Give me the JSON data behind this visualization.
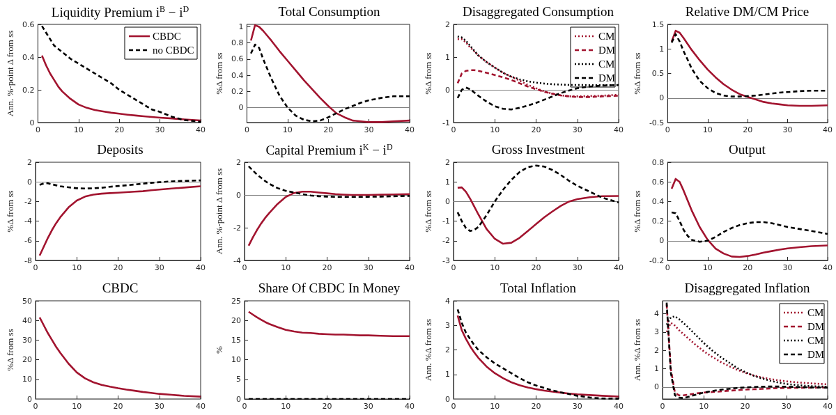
{
  "chart_data": [
    {
      "type": "line",
      "title": "Liquidity Premium i$^{B}$ − i$^{D}$",
      "ylabel": "Ann. %-point Δ from ss",
      "x": [
        1,
        2,
        3,
        4,
        5,
        6,
        8,
        10,
        12,
        14,
        16,
        18,
        20,
        22,
        24,
        26,
        28,
        30,
        33,
        36,
        40
      ],
      "xlim": [
        0,
        40
      ],
      "xticks": [
        0,
        10,
        20,
        30,
        40
      ],
      "ylim": [
        0,
        0.6
      ],
      "yticks": [
        0,
        0.2,
        0.4,
        0.6
      ],
      "legend": "top right",
      "series": [
        {
          "name": "CBDC",
          "color": "#a2142f",
          "line_style": "solid",
          "values": [
            0.41,
            0.35,
            0.3,
            0.26,
            0.22,
            0.19,
            0.145,
            0.11,
            0.09,
            0.077,
            0.068,
            0.06,
            0.054,
            0.048,
            0.043,
            0.038,
            0.034,
            0.03,
            0.025,
            0.019,
            0.013
          ]
        },
        {
          "name": "no CBDC",
          "color": "#000000",
          "line_style": "dashed",
          "values": [
            0.59,
            0.55,
            0.51,
            0.47,
            0.45,
            0.43,
            0.39,
            0.36,
            0.33,
            0.3,
            0.27,
            0.24,
            0.2,
            0.17,
            0.14,
            0.11,
            0.08,
            0.065,
            0.035,
            0.015,
            0.005
          ]
        }
      ]
    },
    {
      "type": "line",
      "title": "Total Consumption",
      "ylabel": "%Δ from ss",
      "x": [
        1,
        2,
        3,
        4,
        5,
        6,
        8,
        10,
        12,
        14,
        16,
        18,
        20,
        22,
        24,
        26,
        28,
        30,
        33,
        36,
        40
      ],
      "xlim": [
        0,
        40
      ],
      "xticks": [
        0,
        10,
        20,
        30,
        40
      ],
      "ylim": [
        -0.185,
        1.03
      ],
      "yticks": [
        0,
        0.2,
        0.4,
        0.6,
        0.8,
        1
      ],
      "ref_lines": [
        {
          "axis": "y",
          "value": 0,
          "color": "#808080"
        }
      ],
      "series": [
        {
          "color": "#a2142f",
          "line_style": "solid",
          "values": [
            0.83,
            1.02,
            1.0,
            0.95,
            0.89,
            0.83,
            0.7,
            0.58,
            0.46,
            0.34,
            0.23,
            0.12,
            0.02,
            -0.07,
            -0.12,
            -0.16,
            -0.17,
            -0.18,
            -0.18,
            -0.17,
            -0.16
          ]
        },
        {
          "color": "#000000",
          "line_style": "dashed",
          "values": [
            0.67,
            0.78,
            0.74,
            0.6,
            0.48,
            0.36,
            0.15,
            0.0,
            -0.1,
            -0.15,
            -0.17,
            -0.16,
            -0.12,
            -0.07,
            -0.02,
            0.02,
            0.06,
            0.09,
            0.12,
            0.14,
            0.14
          ]
        }
      ]
    },
    {
      "type": "line",
      "title": "Disaggregated Consumption",
      "ylabel": "%Δ from ss",
      "x": [
        1,
        2,
        3,
        4,
        5,
        6,
        8,
        10,
        12,
        14,
        16,
        18,
        20,
        22,
        24,
        26,
        28,
        30,
        33,
        36,
        40
      ],
      "xlim": [
        0,
        40
      ],
      "xticks": [
        0,
        10,
        20,
        30,
        40
      ],
      "ylim": [
        -1,
        2
      ],
      "yticks": [
        -1,
        0,
        1,
        2
      ],
      "legend": "top right",
      "ref_lines": [
        {
          "axis": "y",
          "value": 0,
          "color": "#808080"
        }
      ],
      "series": [
        {
          "name": "CM",
          "color": "#a2142f",
          "line_style": "dotted",
          "values": [
            1.55,
            1.55,
            1.45,
            1.3,
            1.18,
            1.05,
            0.85,
            0.68,
            0.52,
            0.4,
            0.28,
            0.15,
            0.05,
            -0.05,
            -0.12,
            -0.17,
            -0.2,
            -0.2,
            -0.19,
            -0.18,
            -0.15
          ]
        },
        {
          "name": "DM",
          "color": "#a2142f",
          "line_style": "dashed",
          "values": [
            0.2,
            0.5,
            0.58,
            0.6,
            0.6,
            0.58,
            0.52,
            0.45,
            0.38,
            0.3,
            0.2,
            0.1,
            0.02,
            -0.06,
            -0.12,
            -0.17,
            -0.2,
            -0.22,
            -0.22,
            -0.2,
            -0.18
          ]
        },
        {
          "name": "CM",
          "color": "#000000",
          "line_style": "dotted",
          "values": [
            1.63,
            1.6,
            1.5,
            1.35,
            1.2,
            1.05,
            0.85,
            0.68,
            0.52,
            0.4,
            0.32,
            0.26,
            0.22,
            0.19,
            0.17,
            0.16,
            0.15,
            0.15,
            0.14,
            0.14,
            0.14
          ]
        },
        {
          "name": "DM",
          "color": "#000000",
          "line_style": "dashed",
          "values": [
            -0.25,
            0.0,
            0.07,
            0.02,
            -0.08,
            -0.18,
            -0.36,
            -0.5,
            -0.58,
            -0.6,
            -0.55,
            -0.48,
            -0.4,
            -0.3,
            -0.2,
            -0.1,
            -0.02,
            0.05,
            0.1,
            0.13,
            0.15
          ]
        }
      ]
    },
    {
      "type": "line",
      "title": "Relative DM/CM Price",
      "ylabel": "%Δ from ss",
      "x": [
        1,
        2,
        3,
        4,
        5,
        6,
        8,
        10,
        12,
        14,
        16,
        18,
        20,
        22,
        24,
        26,
        28,
        30,
        33,
        36,
        40
      ],
      "xlim": [
        0,
        40
      ],
      "xticks": [
        0,
        10,
        20,
        30,
        40
      ],
      "ylim": [
        -0.5,
        1.5
      ],
      "yticks": [
        -0.5,
        0,
        0.5,
        1,
        1.5
      ],
      "ref_lines": [
        {
          "axis": "y",
          "value": 0,
          "color": "#808080"
        }
      ],
      "series": [
        {
          "color": "#a2142f",
          "line_style": "solid",
          "values": [
            1.15,
            1.37,
            1.33,
            1.22,
            1.1,
            0.98,
            0.77,
            0.58,
            0.42,
            0.28,
            0.17,
            0.08,
            0.02,
            -0.03,
            -0.08,
            -0.11,
            -0.13,
            -0.15,
            -0.16,
            -0.16,
            -0.15
          ]
        },
        {
          "color": "#000000",
          "line_style": "dashed",
          "values": [
            1.13,
            1.3,
            1.15,
            0.95,
            0.78,
            0.6,
            0.35,
            0.2,
            0.1,
            0.05,
            0.03,
            0.03,
            0.04,
            0.05,
            0.07,
            0.09,
            0.11,
            0.12,
            0.14,
            0.15,
            0.15
          ]
        }
      ]
    },
    {
      "type": "line",
      "title": "Deposits",
      "ylabel": "%Δ from ss",
      "x": [
        1,
        2,
        3,
        4,
        5,
        6,
        8,
        10,
        12,
        14,
        16,
        18,
        20,
        22,
        24,
        26,
        28,
        30,
        33,
        36,
        40
      ],
      "xlim": [
        0,
        40
      ],
      "xticks": [
        0,
        10,
        20,
        30,
        40
      ],
      "ylim": [
        -8,
        2
      ],
      "yticks": [
        -8,
        -6,
        -4,
        -2,
        0,
        2
      ],
      "ref_lines": [
        {
          "axis": "y",
          "value": 0,
          "color": "#808080"
        }
      ],
      "series": [
        {
          "color": "#a2142f",
          "line_style": "solid",
          "values": [
            -7.5,
            -6.6,
            -5.7,
            -4.9,
            -4.2,
            -3.6,
            -2.6,
            -1.9,
            -1.5,
            -1.3,
            -1.2,
            -1.15,
            -1.1,
            -1.05,
            -1.0,
            -0.95,
            -0.85,
            -0.78,
            -0.68,
            -0.58,
            -0.45
          ]
        },
        {
          "color": "#000000",
          "line_style": "dashed",
          "values": [
            -0.3,
            -0.15,
            -0.15,
            -0.25,
            -0.35,
            -0.45,
            -0.55,
            -0.65,
            -0.68,
            -0.65,
            -0.6,
            -0.5,
            -0.42,
            -0.35,
            -0.27,
            -0.18,
            -0.1,
            -0.03,
            0.05,
            0.1,
            0.15
          ]
        }
      ]
    },
    {
      "type": "line",
      "title": "Capital Premium i$^{K}$ − i$^{D}$",
      "ylabel": "Ann. %-point Δ from ss",
      "x": [
        1,
        2,
        3,
        4,
        5,
        6,
        8,
        10,
        12,
        14,
        16,
        18,
        20,
        22,
        24,
        26,
        28,
        30,
        33,
        36,
        40
      ],
      "xlim": [
        0,
        40
      ],
      "xticks": [
        0,
        10,
        20,
        30,
        40
      ],
      "ylim": [
        -4,
        2
      ],
      "yticks": [
        -4,
        -2,
        0,
        2
      ],
      "ref_lines": [
        {
          "axis": "y",
          "value": 0,
          "color": "#808080"
        }
      ],
      "series": [
        {
          "color": "#a2142f",
          "line_style": "solid",
          "values": [
            -3.1,
            -2.6,
            -2.15,
            -1.75,
            -1.4,
            -1.1,
            -0.55,
            -0.12,
            0.12,
            0.2,
            0.2,
            0.15,
            0.1,
            0.05,
            0.02,
            0.0,
            0.0,
            0.0,
            0.02,
            0.03,
            0.05
          ]
        },
        {
          "color": "#000000",
          "line_style": "dashed",
          "values": [
            1.75,
            1.5,
            1.25,
            1.05,
            0.85,
            0.68,
            0.42,
            0.25,
            0.15,
            0.05,
            -0.03,
            -0.08,
            -0.1,
            -0.12,
            -0.12,
            -0.12,
            -0.12,
            -0.11,
            -0.1,
            -0.08,
            -0.06
          ]
        }
      ]
    },
    {
      "type": "line",
      "title": "Gross Investment",
      "ylabel": "%Δ from ss",
      "x": [
        1,
        2,
        3,
        4,
        5,
        6,
        8,
        10,
        12,
        14,
        16,
        18,
        20,
        22,
        24,
        26,
        28,
        30,
        33,
        36,
        40
      ],
      "xlim": [
        0,
        40
      ],
      "xticks": [
        0,
        10,
        20,
        30,
        40
      ],
      "ylim": [
        -3,
        2
      ],
      "yticks": [
        -3,
        -2,
        -1,
        0,
        1,
        2
      ],
      "ref_lines": [
        {
          "axis": "y",
          "value": 0,
          "color": "#808080"
        }
      ],
      "series": [
        {
          "color": "#a2142f",
          "line_style": "solid",
          "values": [
            0.7,
            0.72,
            0.5,
            0.15,
            -0.25,
            -0.65,
            -1.4,
            -1.9,
            -2.15,
            -2.1,
            -1.85,
            -1.5,
            -1.15,
            -0.8,
            -0.5,
            -0.22,
            0.0,
            0.12,
            0.22,
            0.27,
            0.28
          ]
        },
        {
          "color": "#000000",
          "line_style": "dashed",
          "values": [
            -0.55,
            -1.0,
            -1.35,
            -1.5,
            -1.45,
            -1.3,
            -0.7,
            0.0,
            0.6,
            1.1,
            1.5,
            1.75,
            1.83,
            1.78,
            1.6,
            1.35,
            1.05,
            0.8,
            0.5,
            0.2,
            -0.05
          ]
        }
      ]
    },
    {
      "type": "line",
      "title": "Output",
      "ylabel": "%Δ from ss",
      "x": [
        1,
        2,
        3,
        4,
        5,
        6,
        8,
        10,
        12,
        14,
        16,
        18,
        20,
        22,
        24,
        26,
        28,
        30,
        33,
        36,
        40
      ],
      "xlim": [
        0,
        40
      ],
      "xticks": [
        0,
        10,
        20,
        30,
        40
      ],
      "ylim": [
        -0.2,
        0.8
      ],
      "yticks": [
        -0.2,
        0,
        0.2,
        0.4,
        0.6,
        0.8
      ],
      "ref_lines": [
        {
          "axis": "y",
          "value": 0,
          "color": "#808080"
        }
      ],
      "series": [
        {
          "color": "#a2142f",
          "line_style": "solid",
          "values": [
            0.53,
            0.63,
            0.6,
            0.51,
            0.41,
            0.31,
            0.14,
            0.01,
            -0.08,
            -0.13,
            -0.16,
            -0.165,
            -0.155,
            -0.14,
            -0.12,
            -0.105,
            -0.09,
            -0.078,
            -0.065,
            -0.055,
            -0.048
          ]
        },
        {
          "color": "#000000",
          "line_style": "dashed",
          "values": [
            0.29,
            0.28,
            0.2,
            0.11,
            0.05,
            0.01,
            -0.01,
            0.0,
            0.04,
            0.09,
            0.13,
            0.16,
            0.18,
            0.19,
            0.19,
            0.18,
            0.16,
            0.14,
            0.12,
            0.1,
            0.07
          ]
        }
      ]
    },
    {
      "type": "line",
      "title": "CBDC",
      "ylabel": "%Δ from ss",
      "x": [
        1,
        2,
        3,
        4,
        5,
        6,
        8,
        10,
        12,
        14,
        16,
        18,
        20,
        22,
        24,
        26,
        28,
        30,
        33,
        36,
        40
      ],
      "xlim": [
        0,
        40
      ],
      "xticks": [
        0,
        10,
        20,
        30,
        40
      ],
      "ylim": [
        0,
        50
      ],
      "yticks": [
        0,
        10,
        20,
        30,
        40,
        50
      ],
      "ref_lines": [
        {
          "axis": "y",
          "value": 0,
          "color": "#808080"
        }
      ],
      "series": [
        {
          "color": "#a2142f",
          "line_style": "solid",
          "values": [
            41.5,
            37.5,
            33.5,
            30,
            26.5,
            23.5,
            18,
            13.5,
            10.5,
            8.5,
            7.2,
            6.3,
            5.5,
            4.8,
            4.2,
            3.6,
            3.1,
            2.6,
            2.1,
            1.6,
            1.2
          ]
        }
      ]
    },
    {
      "type": "line",
      "title": "Share Of CBDC In Money",
      "ylabel": "%",
      "x": [
        1,
        2,
        3,
        4,
        5,
        6,
        8,
        10,
        12,
        14,
        16,
        18,
        20,
        22,
        24,
        26,
        28,
        30,
        33,
        36,
        40
      ],
      "xlim": [
        0,
        40
      ],
      "xticks": [
        0,
        10,
        20,
        30,
        40
      ],
      "ylim": [
        0,
        25
      ],
      "yticks": [
        0,
        5,
        10,
        15,
        20,
        25
      ],
      "series": [
        {
          "color": "#a2142f",
          "line_style": "solid",
          "values": [
            22.2,
            21.5,
            20.8,
            20.2,
            19.6,
            19.1,
            18.3,
            17.6,
            17.2,
            16.9,
            16.8,
            16.6,
            16.5,
            16.4,
            16.4,
            16.3,
            16.2,
            16.2,
            16.1,
            16.0,
            16.0
          ]
        },
        {
          "color": "#000000",
          "line_style": "dashed",
          "values": [
            0,
            0,
            0,
            0,
            0,
            0,
            0,
            0,
            0,
            0,
            0,
            0,
            0,
            0,
            0,
            0,
            0,
            0,
            0,
            0,
            0
          ]
        }
      ]
    },
    {
      "type": "line",
      "title": "Total Inflation",
      "ylabel": "Ann. %Δ from ss",
      "x": [
        1,
        2,
        3,
        4,
        5,
        6,
        8,
        10,
        12,
        14,
        16,
        18,
        20,
        22,
        24,
        26,
        28,
        30,
        33,
        36,
        40
      ],
      "xlim": [
        0,
        40
      ],
      "xticks": [
        0,
        10,
        20,
        30,
        40
      ],
      "ylim": [
        0,
        4
      ],
      "yticks": [
        0,
        1,
        2,
        3,
        4
      ],
      "ref_lines": [
        {
          "axis": "y",
          "value": 0,
          "color": "#808080"
        }
      ],
      "series": [
        {
          "color": "#a2142f",
          "line_style": "solid",
          "values": [
            3.4,
            2.8,
            2.45,
            2.15,
            1.9,
            1.68,
            1.32,
            1.05,
            0.85,
            0.68,
            0.56,
            0.47,
            0.4,
            0.34,
            0.3,
            0.26,
            0.22,
            0.19,
            0.16,
            0.13,
            0.1
          ]
        },
        {
          "color": "#000000",
          "line_style": "dashed",
          "values": [
            3.65,
            3.1,
            2.7,
            2.45,
            2.2,
            2.0,
            1.7,
            1.45,
            1.25,
            1.05,
            0.85,
            0.68,
            0.55,
            0.45,
            0.35,
            0.27,
            0.2,
            0.13,
            0.06,
            0.02,
            0.01
          ]
        }
      ]
    },
    {
      "type": "line",
      "title": "Disaggregated Inflation",
      "ylabel": "Ann. %Δ from ss",
      "x": [
        1,
        2,
        3,
        4,
        5,
        6,
        8,
        10,
        12,
        14,
        16,
        18,
        20,
        22,
        24,
        26,
        28,
        30,
        33,
        36,
        40
      ],
      "xlim": [
        0,
        40
      ],
      "xticks": [
        0,
        10,
        20,
        30,
        40
      ],
      "ylim": [
        -0.65,
        4.7
      ],
      "yticks": [
        0,
        1,
        2,
        3,
        4
      ],
      "legend": "top right",
      "ref_lines": [
        {
          "axis": "y",
          "value": 0,
          "color": "#808080"
        }
      ],
      "series": [
        {
          "name": "CM",
          "color": "#a2142f",
          "line_style": "dotted",
          "values": [
            3.0,
            3.5,
            3.35,
            3.1,
            2.9,
            2.7,
            2.3,
            1.95,
            1.65,
            1.38,
            1.15,
            0.95,
            0.78,
            0.64,
            0.53,
            0.44,
            0.37,
            0.31,
            0.25,
            0.2,
            0.15
          ]
        },
        {
          "name": "DM",
          "color": "#a2142f",
          "line_style": "dashed",
          "values": [
            4.5,
            1.0,
            -0.3,
            -0.45,
            -0.45,
            -0.42,
            -0.35,
            -0.3,
            -0.27,
            -0.24,
            -0.2,
            -0.17,
            -0.14,
            -0.12,
            -0.1,
            -0.08,
            -0.06,
            -0.05,
            -0.04,
            -0.03,
            -0.02
          ]
        },
        {
          "name": "CM",
          "color": "#000000",
          "line_style": "dotted",
          "values": [
            3.4,
            3.8,
            3.85,
            3.7,
            3.5,
            3.3,
            2.85,
            2.4,
            2.0,
            1.65,
            1.35,
            1.05,
            0.82,
            0.62,
            0.47,
            0.35,
            0.25,
            0.17,
            0.1,
            0.05,
            0.02
          ]
        },
        {
          "name": "DM",
          "color": "#000000",
          "line_style": "dashed",
          "values": [
            4.6,
            0.8,
            -0.45,
            -0.58,
            -0.6,
            -0.55,
            -0.42,
            -0.3,
            -0.22,
            -0.15,
            -0.1,
            -0.05,
            -0.02,
            0.0,
            0.02,
            0.03,
            0.03,
            0.02,
            0.0,
            -0.02,
            -0.03
          ]
        }
      ]
    }
  ]
}
